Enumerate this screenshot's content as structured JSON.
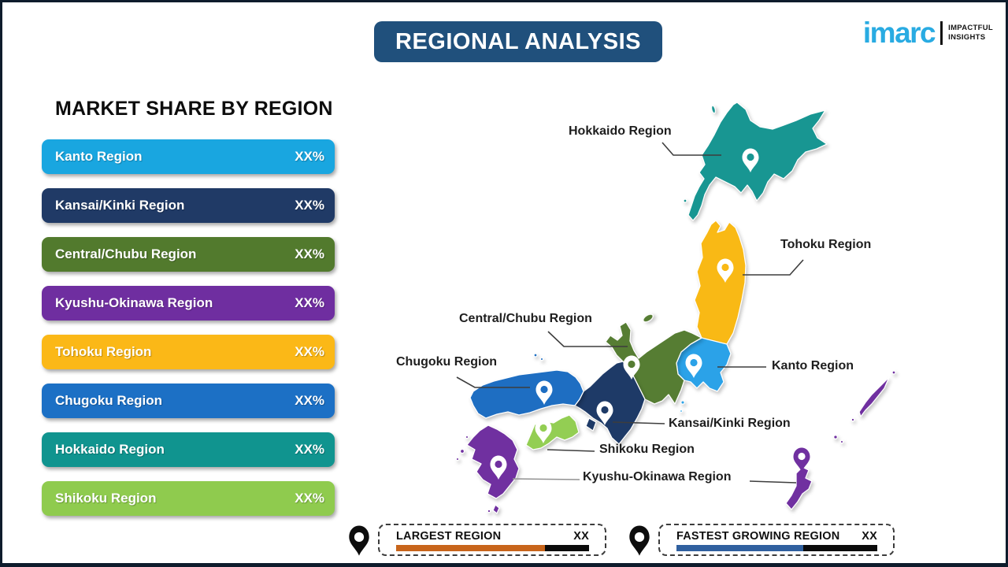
{
  "header": {
    "title": "REGIONAL ANALYSIS",
    "banner_color": "#20507C"
  },
  "logo": {
    "brand": "imarc",
    "brand_color": "#29ABE2",
    "tagline_line1": "IMPACTFUL",
    "tagline_line2": "INSIGHTS"
  },
  "market_share": {
    "heading": "MARKET SHARE BY REGION",
    "bars": [
      {
        "label": "Kanto Region",
        "value": "XX%",
        "color": "#19A6E0"
      },
      {
        "label": "Kansai/Kinki Region",
        "value": "XX%",
        "color": "#203A66"
      },
      {
        "label": "Central/Chubu Region",
        "value": "XX%",
        "color": "#527A2D"
      },
      {
        "label": "Kyushu-Okinawa Region",
        "value": "XX%",
        "color": "#6F2EA0"
      },
      {
        "label": "Tohoku Region",
        "value": "XX%",
        "color": "#FBB817"
      },
      {
        "label": "Chugoku Region",
        "value": "XX%",
        "color": "#1C70C5"
      },
      {
        "label": "Hokkaido Region",
        "value": "XX%",
        "color": "#10948F"
      },
      {
        "label": "Shikoku Region",
        "value": "XX%",
        "color": "#8FCB4E"
      }
    ]
  },
  "map": {
    "colors": {
      "hokkaido": "#189692",
      "tohoku": "#F9B915",
      "kanto": "#2BA2E8",
      "chubu": "#567D33",
      "kansai": "#1E3A67",
      "chugoku": "#1E6EC2",
      "shikoku": "#93CE53",
      "kyushu": "#7030A0",
      "pin_white": "#FFFFFF"
    },
    "labels": [
      {
        "id": "hokkaido",
        "text": "Hokkaido Region"
      },
      {
        "id": "tohoku",
        "text": "Tohoku Region"
      },
      {
        "id": "chubu",
        "text": "Central/Chubu Region"
      },
      {
        "id": "chugoku",
        "text": "Chugoku Region"
      },
      {
        "id": "kanto",
        "text": "Kanto Region"
      },
      {
        "id": "kansai",
        "text": "Kansai/Kinki Region"
      },
      {
        "id": "shikoku",
        "text": "Shikoku Region"
      },
      {
        "id": "kyushu",
        "text": "Kyushu-Okinawa Region"
      }
    ]
  },
  "legend": {
    "items": [
      {
        "title": "LARGEST REGION",
        "value": "XX",
        "bar_color": "#C8651B",
        "bar_pct": 77
      },
      {
        "title": "FASTEST GROWING REGION",
        "value": "XX",
        "bar_color": "#30609F",
        "bar_pct": 63
      }
    ]
  }
}
